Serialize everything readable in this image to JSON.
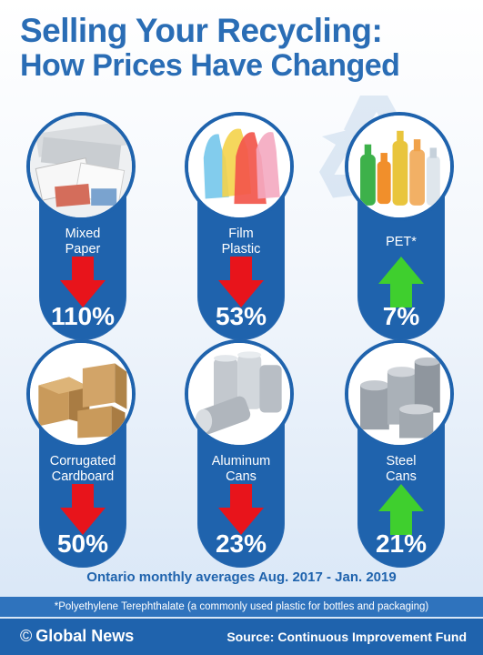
{
  "title": {
    "line1": "Selling Your Recycling:",
    "line2": "How Prices Have Changed"
  },
  "items": [
    {
      "label": "Mixed Paper",
      "direction": "down",
      "change": "110%",
      "icon": "newspaper-stack-icon"
    },
    {
      "label": "Film Plastic",
      "direction": "down",
      "change": "53%",
      "icon": "plastic-bags-icon"
    },
    {
      "label": "PET*",
      "direction": "up",
      "change": "7%",
      "icon": "plastic-bottles-icon"
    },
    {
      "label": "Corrugated Cardboard",
      "direction": "down",
      "change": "50%",
      "icon": "cardboard-boxes-icon"
    },
    {
      "label": "Aluminum Cans",
      "direction": "down",
      "change": "23%",
      "icon": "aluminum-cans-icon"
    },
    {
      "label": "Steel Cans",
      "direction": "up",
      "change": "21%",
      "icon": "steel-cans-icon"
    }
  ],
  "averages_note": "Ontario monthly averages Aug. 2017 - Jan. 2019",
  "footnote": "*Polyethylene Terephthalate (a commonly used plastic for bottles and packaging)",
  "footer": {
    "copyright_symbol": "©",
    "brand": "Global News",
    "source": "Source: Continuous Improvement Fund"
  },
  "colors": {
    "primary_blue": "#1f63ad",
    "title_blue": "#2a6db5",
    "down_red": "#e8141b",
    "up_green": "#3fcf2e"
  }
}
